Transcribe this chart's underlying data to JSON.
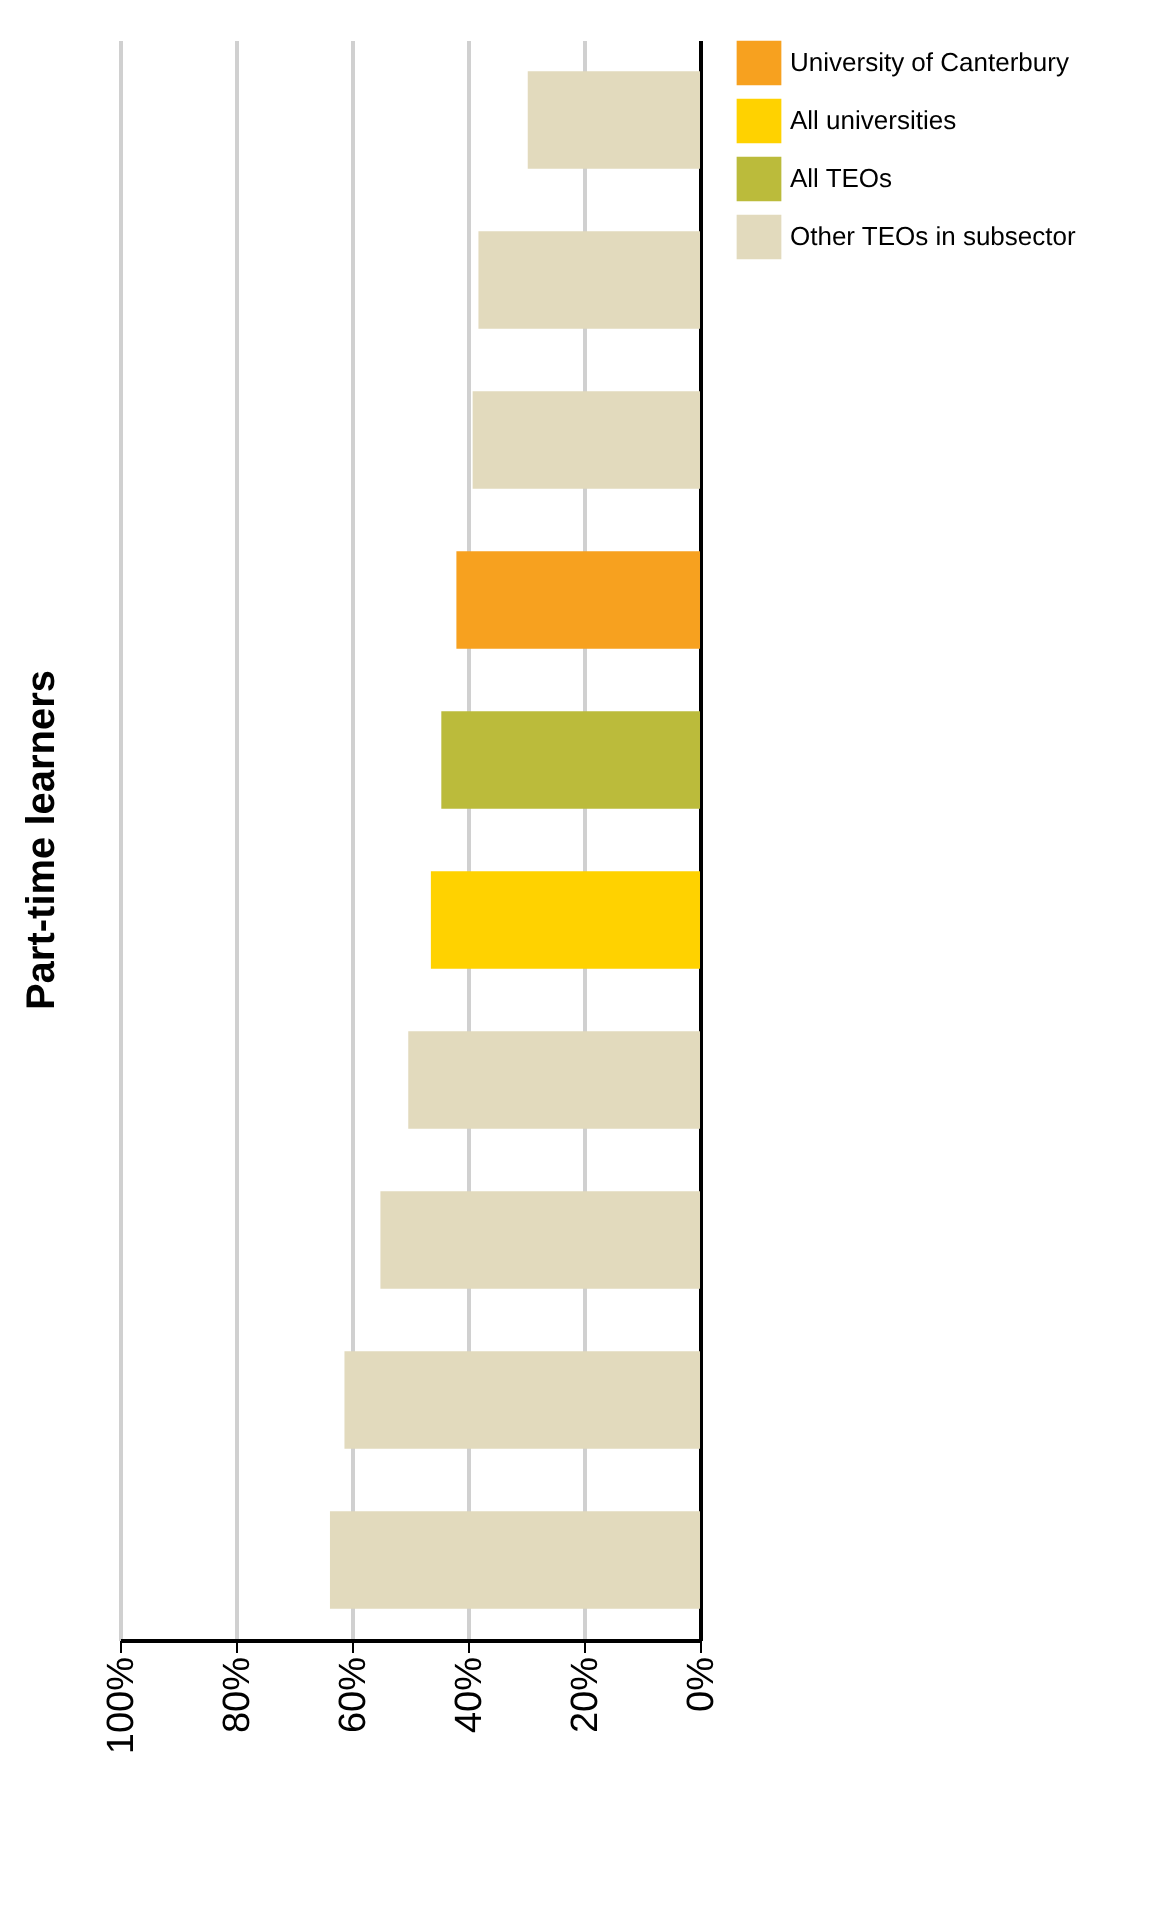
{
  "chart_data": {
    "type": "bar",
    "title": "Part-time learners",
    "orientation": "horizontal",
    "categories": [
      null,
      null,
      null,
      null,
      null,
      null,
      null,
      null,
      null,
      null
    ],
    "series": [
      {
        "name": "University of Canterbury",
        "color": "#f7a11f",
        "values": [
          null,
          null,
          null,
          42,
          null,
          null,
          null,
          null,
          null,
          null
        ]
      },
      {
        "name": "All universities",
        "color": "#ffd200",
        "values": [
          null,
          null,
          null,
          null,
          null,
          46.4,
          null,
          null,
          null,
          null
        ]
      },
      {
        "name": "All TEOs",
        "color": "#bbbb3b",
        "values": [
          null,
          null,
          null,
          null,
          44.6,
          null,
          null,
          null,
          null,
          null
        ]
      },
      {
        "name": "Other TEOs in subsector",
        "color": "#e2dabd",
        "values": [
          29.7,
          38.2,
          39.2,
          null,
          null,
          null,
          50.3,
          55.1,
          61.3,
          63.8
        ]
      }
    ],
    "xlim": [
      100,
      0
    ],
    "xticks": [
      {
        "value": 100,
        "label": "100%"
      },
      {
        "value": 80,
        "label": "80%"
      },
      {
        "value": 60,
        "label": "60%"
      },
      {
        "value": 40,
        "label": "40%"
      },
      {
        "value": 20,
        "label": "20%"
      },
      {
        "value": 0,
        "label": "0%"
      }
    ],
    "grid": "x",
    "legend": "right"
  }
}
